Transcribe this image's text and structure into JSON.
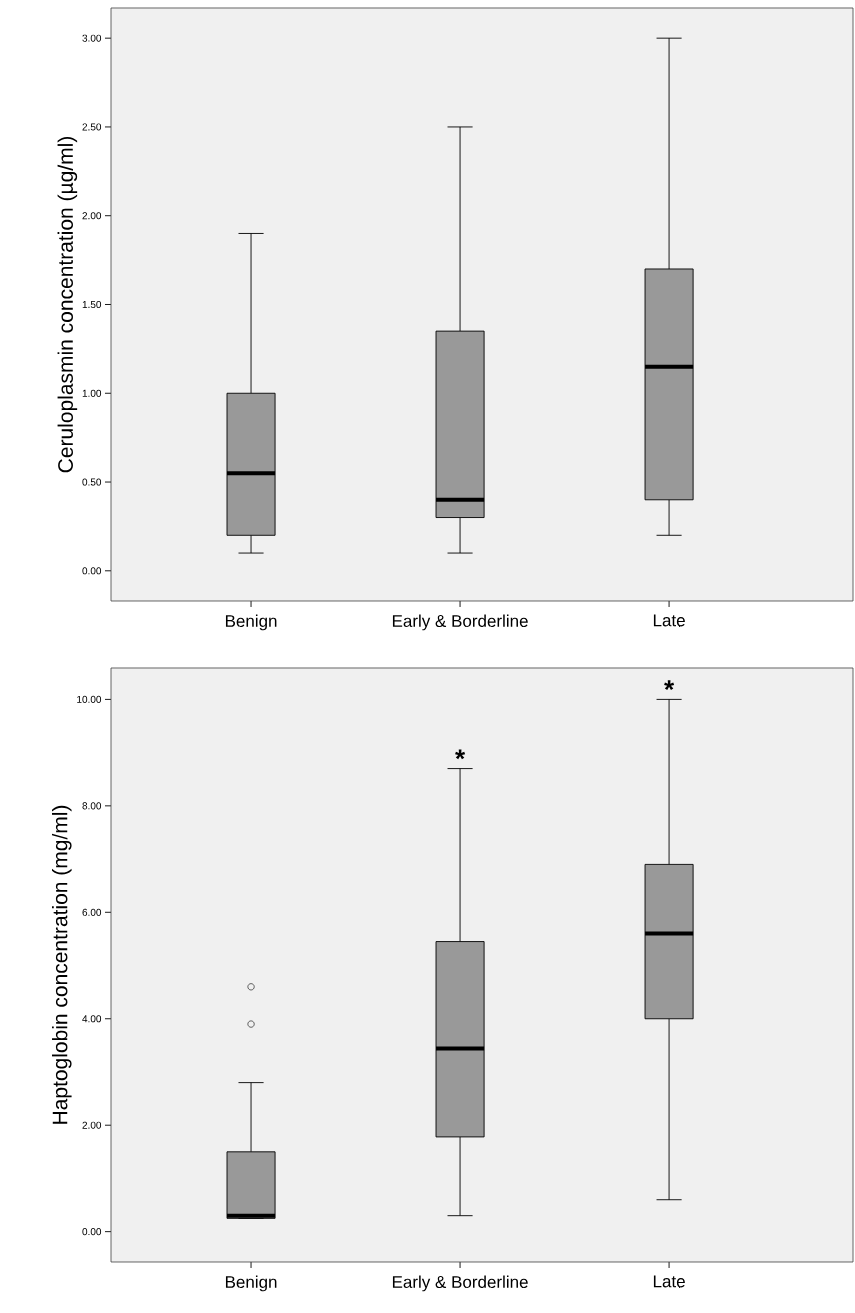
{
  "chart_data": [
    {
      "type": "box",
      "ylabel": "Ceruloplasmin concentration (µg/ml)",
      "categories": [
        "Benign",
        "Early & Borderline",
        "Late"
      ],
      "color": "#999999",
      "boxes": [
        {
          "low": 0.1,
          "q1": 0.2,
          "median": 0.55,
          "q3": 1.0,
          "high": 1.9
        },
        {
          "low": 0.1,
          "q1": 0.3,
          "median": 0.4,
          "q3": 1.35,
          "high": 2.5
        },
        {
          "low": 0.2,
          "q1": 0.4,
          "median": 1.15,
          "q3": 1.7,
          "high": 3.0
        }
      ],
      "ylim": [
        -0.17,
        3.17
      ],
      "yticks": [
        {
          "value": 0,
          "label": "0.00"
        },
        {
          "value": 0.5,
          "label": "0.50"
        },
        {
          "value": 1,
          "label": "1.00"
        },
        {
          "value": 1.5,
          "label": "1.50"
        },
        {
          "value": 2,
          "label": "2.00"
        },
        {
          "value": 2.5,
          "label": "2.50"
        },
        {
          "value": 3,
          "label": "3.00"
        }
      ]
    },
    {
      "type": "box",
      "ylabel": "Haptoglobin concentration (mg/ml)",
      "categories": [
        "Benign",
        "Early & Borderline",
        "Late"
      ],
      "color": "#999999",
      "boxes": [
        {
          "low": 0.25,
          "q1": 0.25,
          "median": 0.3,
          "q3": 1.5,
          "high": 2.8,
          "outliers": [
            3.9,
            4.6
          ]
        },
        {
          "low": 0.3,
          "q1": 1.78,
          "median": 3.44,
          "q3": 5.45,
          "high": 8.7
        },
        {
          "low": 0.6,
          "q1": 4.0,
          "median": 5.6,
          "q3": 6.9,
          "high": 10.0
        }
      ],
      "ylim": [
        -0.57,
        10.59
      ],
      "yticks": [
        {
          "value": 0,
          "label": "0.00"
        },
        {
          "value": 2,
          "label": "2.00"
        },
        {
          "value": 4,
          "label": "4.00"
        },
        {
          "value": 6,
          "label": "6.00"
        },
        {
          "value": 8,
          "label": "8.00"
        },
        {
          "value": 10,
          "label": "10.00"
        }
      ],
      "annotations": [
        {
          "text": "*",
          "x": "Early & Borderline",
          "y": 8.7
        },
        {
          "text": "*",
          "x": "Late",
          "y": 10.0
        }
      ]
    }
  ]
}
